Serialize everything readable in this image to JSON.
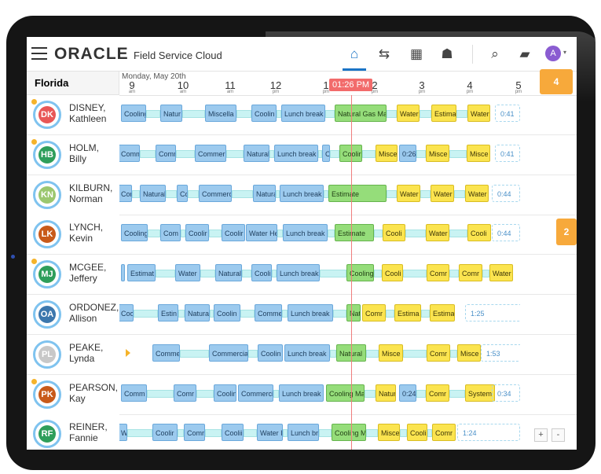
{
  "header": {
    "app_logo": "ORACLE",
    "product": "Field Service Cloud",
    "icons": [
      "menu-icon",
      "home-icon",
      "dispatch-icon",
      "dashboard-icon",
      "team-icon",
      "search-icon",
      "messages-icon"
    ],
    "avatar": "A"
  },
  "timeline": {
    "region": "Florida",
    "date": "Monday, May 20th",
    "now": "01:26 PM",
    "hours": [
      {
        "h": "9",
        "p": "am"
      },
      {
        "h": "10",
        "p": "am"
      },
      {
        "h": "11",
        "p": "am"
      },
      {
        "h": "12",
        "p": "pm"
      },
      {
        "h": "1",
        "p": "pm"
      },
      {
        "h": "2",
        "p": "pm"
      },
      {
        "h": "3",
        "p": "pm"
      },
      {
        "h": "4",
        "p": "pm"
      },
      {
        "h": "5",
        "p": "pm"
      }
    ],
    "badge_top": "4",
    "badge_mid": "2"
  },
  "technicians": [
    {
      "ini": "DK",
      "last": "DISNEY,",
      "first": "Kathleen",
      "color": "#e85757",
      "dot": true,
      "tail": "0:41"
    },
    {
      "ini": "HB",
      "last": "HOLM,",
      "first": "Billy",
      "color": "#2e9e5b",
      "dot": true,
      "tail": "0:41"
    },
    {
      "ini": "KN",
      "last": "KILBURN,",
      "first": "Norman",
      "color": "#9bc76f",
      "dot": false,
      "tail": "0:44"
    },
    {
      "ini": "LK",
      "last": "LYNCH,",
      "first": "Kevin",
      "color": "#c85a1a",
      "dot": false,
      "tail": "0:44"
    },
    {
      "ini": "MJ",
      "last": "MCGEE,",
      "first": "Jeffery",
      "color": "#2e9e5b",
      "dot": true,
      "tail": ""
    },
    {
      "ini": "OA",
      "last": "ORDONEZ,",
      "first": "Allison",
      "color": "#3c77ad",
      "dot": false,
      "tail": "1:25"
    },
    {
      "ini": "PL",
      "last": "PEAKE,",
      "first": "Lynda",
      "color": "#c8c8c8",
      "dot": false,
      "tail": "1:53"
    },
    {
      "ini": "PK",
      "last": "PEARSON,",
      "first": "Kay",
      "color": "#c85a1a",
      "dot": true,
      "tail": "0:34"
    },
    {
      "ini": "RF",
      "last": "REINER,",
      "first": "Fannie",
      "color": "#2e9e5b",
      "dot": false,
      "tail": "1:24"
    }
  ],
  "activities": [
    [
      [
        "b",
        "Cooling"
      ],
      [
        "b",
        "Natur"
      ],
      [
        "b",
        "Miscella"
      ],
      [
        "b",
        "Coolin"
      ],
      [
        "b",
        "Lunch break"
      ],
      [
        "g",
        "Natural Gas Mai"
      ],
      [
        "y",
        "Water"
      ],
      [
        "y",
        "Estima"
      ],
      [
        "y",
        "Water"
      ]
    ],
    [
      [
        "b",
        "Commer"
      ],
      [
        "b",
        "Comr"
      ],
      [
        "b",
        "Commer"
      ],
      [
        "b",
        "Natural"
      ],
      [
        "b",
        "Lunch break"
      ],
      [
        "b",
        "C"
      ],
      [
        "g",
        "Coolir"
      ],
      [
        "y",
        "Misce"
      ],
      [
        "b",
        "0:26"
      ],
      [
        "y",
        "Misce"
      ],
      [
        "y",
        "Misce"
      ]
    ],
    [
      [
        "b",
        "Comm"
      ],
      [
        "b",
        "Natural"
      ],
      [
        "b",
        "Cc"
      ],
      [
        "b",
        "Commerc"
      ],
      [
        "b",
        "Natura"
      ],
      [
        "b",
        "Lunch break"
      ],
      [
        "g",
        "Estimate"
      ],
      [
        "y",
        "Water"
      ],
      [
        "y",
        "Water"
      ],
      [
        "y",
        "Water"
      ]
    ],
    [
      [
        "b",
        "Cooling"
      ],
      [
        "b",
        "Com"
      ],
      [
        "b",
        "Coolir"
      ],
      [
        "b",
        "Coolir"
      ],
      [
        "b",
        "Water He"
      ],
      [
        "b",
        "Lunch break"
      ],
      [
        "g",
        "Estimate"
      ],
      [
        "y",
        "Cooli"
      ],
      [
        "y",
        "Water"
      ],
      [
        "y",
        "Cooli"
      ]
    ],
    [
      [
        "b",
        "Est"
      ],
      [
        "b",
        "Estimat"
      ],
      [
        "b",
        "Water"
      ],
      [
        "b",
        "Natural"
      ],
      [
        "b",
        "Coolii"
      ],
      [
        "b",
        "Lunch break"
      ],
      [
        "g",
        "Cooling"
      ],
      [
        "y",
        "Cooli"
      ],
      [
        "y",
        "Comr"
      ],
      [
        "y",
        "Comr"
      ],
      [
        "y",
        "Water"
      ]
    ],
    [
      [
        "b",
        "Cooling"
      ],
      [
        "b",
        "Estin"
      ],
      [
        "b",
        "Natura"
      ],
      [
        "b",
        "Coolin"
      ],
      [
        "b",
        "Comme"
      ],
      [
        "b",
        "Lunch break"
      ],
      [
        "g",
        "Nat"
      ],
      [
        "y",
        "Comr"
      ],
      [
        "y",
        "Estima"
      ],
      [
        "y",
        "Estima"
      ]
    ],
    [
      [
        "b",
        "Comme"
      ],
      [
        "b",
        "Commercia"
      ],
      [
        "b",
        "Coolin"
      ],
      [
        "b",
        "Lunch break"
      ],
      [
        "g",
        "Natural"
      ],
      [
        "y",
        "Misce"
      ],
      [
        "y",
        "Comr"
      ],
      [
        "y",
        "Misce"
      ]
    ],
    [
      [
        "b",
        "Comm"
      ],
      [
        "b",
        "Comr"
      ],
      [
        "b",
        "Coolin"
      ],
      [
        "b",
        "Commerci"
      ],
      [
        "b",
        "Lunch break"
      ],
      [
        "g",
        "Cooling Mai"
      ],
      [
        "y",
        "Natur"
      ],
      [
        "b",
        "0:24"
      ],
      [
        "y",
        "Comr"
      ],
      [
        "y",
        "System ("
      ]
    ],
    [
      [
        "b",
        "Water H"
      ],
      [
        "b",
        "Coolir"
      ],
      [
        "b",
        "Comr"
      ],
      [
        "b",
        "Coolii"
      ],
      [
        "b",
        "Water I"
      ],
      [
        "b",
        "Lunch br"
      ],
      [
        "g",
        "Cooling M"
      ],
      [
        "y",
        "Misce"
      ],
      [
        "y",
        "Cooli"
      ],
      [
        "y",
        "Comr"
      ]
    ]
  ],
  "zoom": {
    "plus": "+",
    "minus": "-"
  }
}
